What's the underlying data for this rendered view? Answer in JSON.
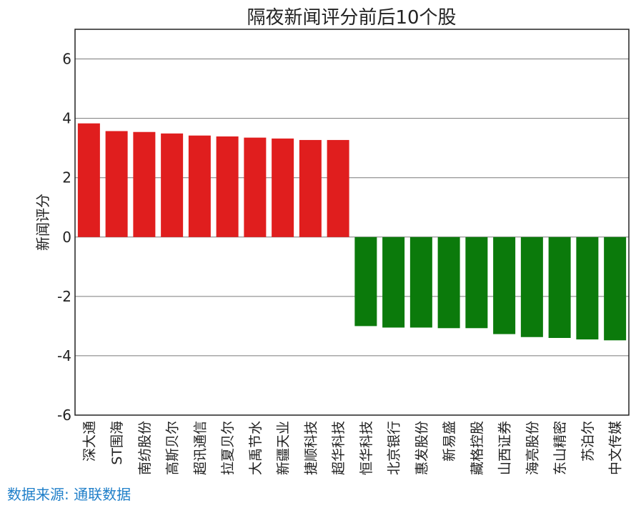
{
  "chart_data": {
    "type": "bar",
    "title": "隔夜新闻评分前后10个股",
    "xlabel": "",
    "ylabel": "新闻评分",
    "ylim": [
      -6,
      7
    ],
    "yticks": [
      -6,
      -4,
      -2,
      0,
      2,
      4,
      6
    ],
    "ytick_labels": [
      "-6",
      "-4",
      "-2",
      "0",
      "2",
      "4",
      "6"
    ],
    "grid": true,
    "categories": [
      "深大通",
      "ST围海",
      "南纺股份",
      "高斯贝尔",
      "超讯通信",
      "拉夏贝尔",
      "大禹节水",
      "新疆天业",
      "捷顺科技",
      "超华科技",
      "恒华科技",
      "北京银行",
      "惠发股份",
      "新易盛",
      "藏格控股",
      "山西证券",
      "海亮股份",
      "东山精密",
      "苏泊尔",
      "中文传媒"
    ],
    "values": [
      3.83,
      3.57,
      3.54,
      3.49,
      3.42,
      3.39,
      3.35,
      3.32,
      3.27,
      3.27,
      -3.0,
      -3.05,
      -3.05,
      -3.07,
      -3.07,
      -3.27,
      -3.37,
      -3.4,
      -3.45,
      -3.48
    ],
    "colors": {
      "positive": "#e01e1e",
      "negative": "#0b7a0b"
    }
  },
  "footer": {
    "source": "数据来源: 通联数据"
  }
}
